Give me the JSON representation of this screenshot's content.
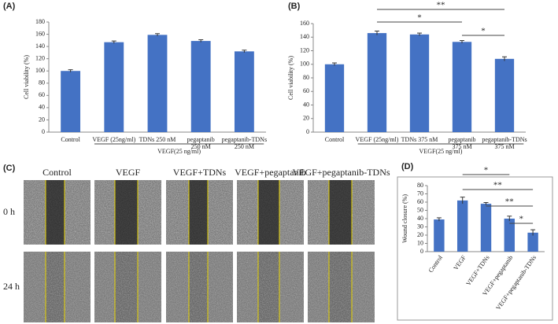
{
  "chart_data": [
    {
      "type": "bar",
      "panel": "(A)",
      "ylabel": "Cell viability (%)",
      "color": "#4472c4",
      "categories": [
        [
          "Control"
        ],
        [
          "VEGF (25ng/ml)"
        ],
        [
          "TDNs 250 nM"
        ],
        [
          "pegaptanib",
          "250 nM"
        ],
        [
          "pegaptanib-TDNs",
          "250 nM"
        ]
      ],
      "values": [
        100,
        147,
        159,
        149,
        132
      ],
      "errors": [
        2,
        2,
        2,
        2,
        2
      ],
      "ylim": [
        0,
        180
      ],
      "yticks": [
        0,
        20,
        40,
        60,
        80,
        100,
        120,
        140,
        160,
        180
      ],
      "group_label": "VEGF(25 ng/ml)",
      "significance": []
    },
    {
      "type": "bar",
      "panel": "(B)",
      "ylabel": "Cell viability (%)",
      "color": "#4472c4",
      "categories": [
        [
          "Control"
        ],
        [
          "VEGF (25ng/ml)"
        ],
        [
          "TDNs 375 nM"
        ],
        [
          "pegaptanib",
          "375 nM"
        ],
        [
          "pegaptanib-TDNs",
          "375 nM"
        ]
      ],
      "values": [
        100,
        146,
        144,
        133,
        108
      ],
      "errors": [
        2,
        3,
        2,
        2,
        3
      ],
      "ylim": [
        0,
        160
      ],
      "yticks": [
        0,
        20,
        40,
        60,
        80,
        100,
        120,
        140,
        160
      ],
      "group_label": "VEGF(25 ng/ml)",
      "significance": [
        {
          "from": 1,
          "to": 4,
          "label": "**"
        },
        {
          "from": 1,
          "to": 3,
          "label": "*"
        },
        {
          "from": 3,
          "to": 4,
          "label": "*"
        }
      ]
    },
    {
      "type": "bar",
      "panel": "(D)",
      "ylabel": "Wound closure (%)",
      "color": "#4472c4",
      "categories": [
        [
          "Control"
        ],
        [
          "VEGF"
        ],
        [
          "VEGF+TDNs"
        ],
        [
          "VEGF+pegaptanib"
        ],
        [
          "VEGF+pegaptanib-TDNs"
        ]
      ],
      "values": [
        39,
        62,
        58,
        40,
        23
      ],
      "errors": [
        2,
        4,
        1.5,
        3,
        3.5
      ],
      "ylim": [
        0,
        80
      ],
      "yticks": [
        0,
        10,
        20,
        30,
        40,
        50,
        60,
        70,
        80
      ],
      "significance": [
        {
          "from": 1,
          "to": 3,
          "label": "*"
        },
        {
          "from": 1,
          "to": 4,
          "label": "**"
        },
        {
          "from": 2,
          "to": 4,
          "label": "**"
        },
        {
          "from": 3,
          "to": 4,
          "label": "*"
        }
      ]
    }
  ],
  "panel_c": {
    "label": "(C)",
    "columns": [
      "Control",
      "VEGF",
      "VEGF+TDNs",
      "VEGF+pegaptanib",
      "VEGF+pegaptanib-TDNs"
    ],
    "rows": [
      "0 h",
      "24 h"
    ]
  }
}
